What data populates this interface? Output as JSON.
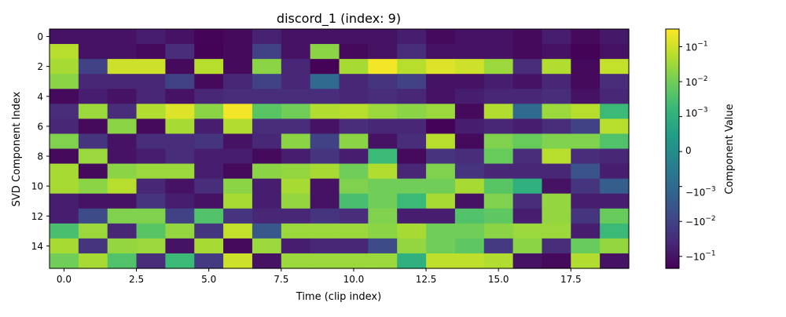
{
  "chart_data": {
    "type": "heatmap",
    "title": "discord_1 (index: 9)",
    "xlabel": "Time (clip index)",
    "ylabel": "SVD Component Index",
    "x_ticks": [
      "0.0",
      "2.5",
      "5.0",
      "7.5",
      "10.0",
      "12.5",
      "15.0",
      "17.5"
    ],
    "x_tick_values": [
      0,
      2.5,
      5,
      7.5,
      10,
      12.5,
      15,
      17.5
    ],
    "y_ticks": [
      "0",
      "2",
      "4",
      "6",
      "8",
      "10",
      "12",
      "14"
    ],
    "y_tick_values": [
      0,
      2,
      4,
      6,
      8,
      10,
      12,
      14
    ],
    "x_range": [
      -0.5,
      19.5
    ],
    "y_range": [
      -0.5,
      15.5
    ],
    "n_cols": 20,
    "n_rows": 16,
    "colormap": "viridis",
    "color_scale": "symlog",
    "colorbar": {
      "label": "Component Value",
      "range": [
        -0.22,
        0.32
      ],
      "ticks": [
        {
          "label": "10",
          "exp": "−1",
          "value": 0.1
        },
        {
          "label": "10",
          "exp": "−2",
          "value": 0.01
        },
        {
          "label": "10",
          "exp": "−3",
          "value": 0.001
        },
        {
          "label": "0",
          "exp": "",
          "value": 0
        },
        {
          "label": "−10",
          "exp": "−3",
          "value": -0.001
        },
        {
          "label": "−10",
          "exp": "−2",
          "value": -0.01
        },
        {
          "label": "−10",
          "exp": "−1",
          "value": -0.1
        }
      ]
    },
    "values": [
      [
        -0.1,
        -0.1,
        -0.1,
        -0.06,
        -0.1,
        -0.18,
        -0.15,
        -0.05,
        -0.1,
        -0.1,
        -0.1,
        -0.1,
        -0.06,
        -0.15,
        -0.1,
        -0.1,
        -0.15,
        -0.06,
        -0.15,
        -0.08
      ],
      [
        0.06,
        -0.1,
        -0.1,
        -0.15,
        -0.03,
        -0.2,
        -0.15,
        -0.01,
        -0.1,
        0.02,
        -0.15,
        -0.1,
        -0.03,
        -0.1,
        -0.1,
        -0.1,
        -0.15,
        -0.1,
        -0.2,
        -0.1
      ],
      [
        0.04,
        -0.01,
        0.1,
        0.1,
        -0.15,
        0.06,
        -0.15,
        0.02,
        -0.04,
        -0.2,
        0.04,
        0.25,
        0.06,
        0.15,
        0.1,
        0.03,
        -0.03,
        0.05,
        -0.15,
        0.08
      ],
      [
        0.02,
        -0.04,
        -0.04,
        -0.04,
        -0.01,
        -0.15,
        -0.04,
        -0.01,
        -0.04,
        -0.001,
        -0.04,
        -0.02,
        -0.01,
        -0.1,
        -0.1,
        -0.06,
        -0.1,
        -0.04,
        -0.15,
        -0.03
      ],
      [
        -0.15,
        -0.06,
        -0.1,
        -0.04,
        -0.1,
        -0.04,
        -0.03,
        -0.03,
        -0.03,
        -0.03,
        -0.04,
        -0.03,
        -0.04,
        -0.1,
        -0.06,
        -0.04,
        -0.04,
        -0.03,
        -0.1,
        -0.04
      ],
      [
        -0.03,
        0.03,
        -0.03,
        0.05,
        0.15,
        0.02,
        0.25,
        0.005,
        0.01,
        0.05,
        0.06,
        0.03,
        0.02,
        0.03,
        -0.15,
        0.05,
        -0.001,
        0.03,
        0.06,
        0.002
      ],
      [
        -0.04,
        -0.15,
        0.02,
        -0.15,
        0.04,
        -0.06,
        0.05,
        -0.03,
        -0.03,
        -0.1,
        -0.03,
        -0.04,
        -0.04,
        -0.2,
        -0.06,
        -0.04,
        -0.06,
        -0.03,
        -0.01,
        0.06
      ],
      [
        0.015,
        -0.02,
        -0.1,
        -0.03,
        -0.03,
        -0.02,
        -0.1,
        -0.04,
        0.02,
        -0.01,
        0.02,
        -0.1,
        -0.03,
        0.06,
        -0.15,
        0.015,
        0.008,
        0.015,
        0.015,
        0.004
      ],
      [
        -0.15,
        0.03,
        -0.1,
        -0.06,
        -0.03,
        -0.06,
        -0.06,
        -0.15,
        -0.06,
        -0.02,
        -0.06,
        0.002,
        -0.15,
        -0.02,
        -0.03,
        0.008,
        -0.03,
        0.06,
        -0.03,
        -0.04
      ],
      [
        0.04,
        -0.15,
        0.02,
        0.03,
        0.03,
        -0.06,
        -0.15,
        0.02,
        0.025,
        0.04,
        0.01,
        0.05,
        -0.04,
        0.015,
        -0.02,
        -0.04,
        -0.04,
        -0.04,
        -0.004,
        -0.06
      ],
      [
        0.04,
        0.02,
        0.06,
        -0.04,
        -0.1,
        -0.03,
        0.02,
        -0.06,
        0.04,
        -0.1,
        0.015,
        0.01,
        0.01,
        0.01,
        0.04,
        0.005,
        0.001,
        -0.1,
        -0.02,
        -0.002
      ],
      [
        -0.06,
        -0.1,
        -0.1,
        -0.02,
        -0.06,
        -0.1,
        0.04,
        -0.06,
        0.025,
        -0.1,
        0.003,
        0.01,
        0.002,
        0.04,
        -0.1,
        0.015,
        -0.03,
        0.025,
        -0.06,
        -0.06
      ],
      [
        -0.06,
        -0.006,
        0.015,
        0.015,
        -0.01,
        0.004,
        -0.02,
        -0.04,
        -0.04,
        -0.02,
        -0.03,
        0.015,
        -0.06,
        -0.06,
        0.004,
        0.006,
        -0.06,
        0.025,
        -0.02,
        0.008
      ],
      [
        0.003,
        0.03,
        -0.04,
        0.005,
        0.025,
        -0.02,
        0.08,
        -0.003,
        0.03,
        0.03,
        0.03,
        0.02,
        0.04,
        0.01,
        0.01,
        0.02,
        0.03,
        0.03,
        -0.06,
        0.002
      ],
      [
        0.04,
        -0.02,
        0.025,
        0.03,
        -0.1,
        0.04,
        -0.15,
        0.03,
        -0.06,
        -0.04,
        -0.04,
        -0.006,
        0.025,
        0.01,
        0.006,
        -0.015,
        0.02,
        -0.03,
        0.008,
        0.025
      ],
      [
        0.01,
        0.04,
        0.004,
        -0.03,
        0.002,
        -0.015,
        0.1,
        -0.1,
        0.03,
        0.03,
        0.03,
        0.03,
        0.001,
        0.07,
        0.07,
        0.05,
        -0.1,
        -0.15,
        0.05,
        -0.1
      ]
    ]
  }
}
